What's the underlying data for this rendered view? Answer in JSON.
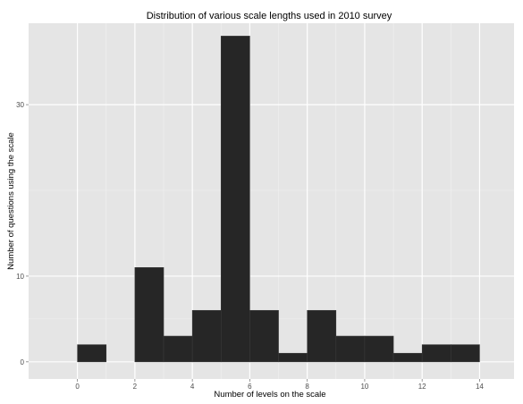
{
  "chart_data": {
    "type": "bar",
    "title": "Distribution of various scale lengths used in 2010 survey",
    "xlabel": "Number of levels on the scale",
    "ylabel": "Number of questions using the scale",
    "xlim": [
      -1.7,
      15.2
    ],
    "ylim": [
      -2.0,
      39.5
    ],
    "x_ticks": [
      0,
      2,
      4,
      6,
      8,
      10,
      12,
      14
    ],
    "y_ticks": [
      0,
      10,
      30
    ],
    "grid": true,
    "bin_width": 1,
    "bins": [
      {
        "start": 0,
        "end": 1,
        "count": 2
      },
      {
        "start": 2,
        "end": 3,
        "count": 11
      },
      {
        "start": 3,
        "end": 4,
        "count": 3
      },
      {
        "start": 4,
        "end": 5,
        "count": 6
      },
      {
        "start": 5,
        "end": 6,
        "count": 38
      },
      {
        "start": 6,
        "end": 7,
        "count": 6
      },
      {
        "start": 7,
        "end": 8,
        "count": 1
      },
      {
        "start": 8,
        "end": 9,
        "count": 6
      },
      {
        "start": 9,
        "end": 10,
        "count": 3
      },
      {
        "start": 10,
        "end": 11,
        "count": 3
      },
      {
        "start": 11,
        "end": 12,
        "count": 1
      },
      {
        "start": 12,
        "end": 13,
        "count": 2
      },
      {
        "start": 13,
        "end": 14,
        "count": 2
      }
    ],
    "colors": {
      "panel": "#e5e5e5",
      "grid_major": "#ffffff",
      "grid_minor": "#f2f2f2",
      "bar_fill": "#262626",
      "bar_stroke": "#3a3a3a"
    }
  }
}
